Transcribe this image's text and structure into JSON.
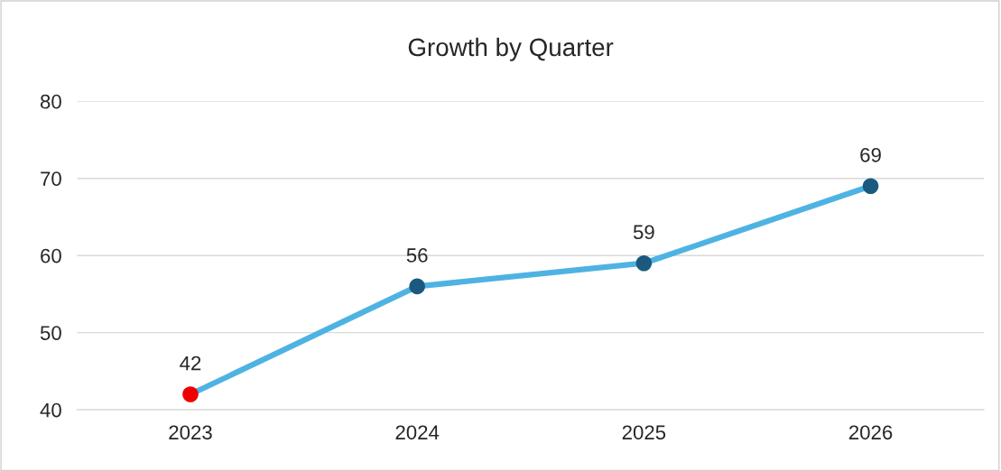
{
  "chart_data": {
    "type": "line",
    "title": "Growth by Quarter",
    "categories": [
      "2023",
      "2024",
      "2025",
      "2026"
    ],
    "series": [
      {
        "color": "#4eb3e3",
        "colors": [
          "#ee0000",
          "#1b5a7e",
          "#1b5a7e",
          "#1b5a7e"
        ],
        "values": [
          42,
          56,
          59,
          69
        ]
      }
    ],
    "ylim": [
      40,
      80
    ],
    "yticks": [
      40,
      50,
      60,
      70,
      80
    ],
    "grid": "y",
    "data_labels": true,
    "marker": "circle",
    "line_style": "solid"
  }
}
